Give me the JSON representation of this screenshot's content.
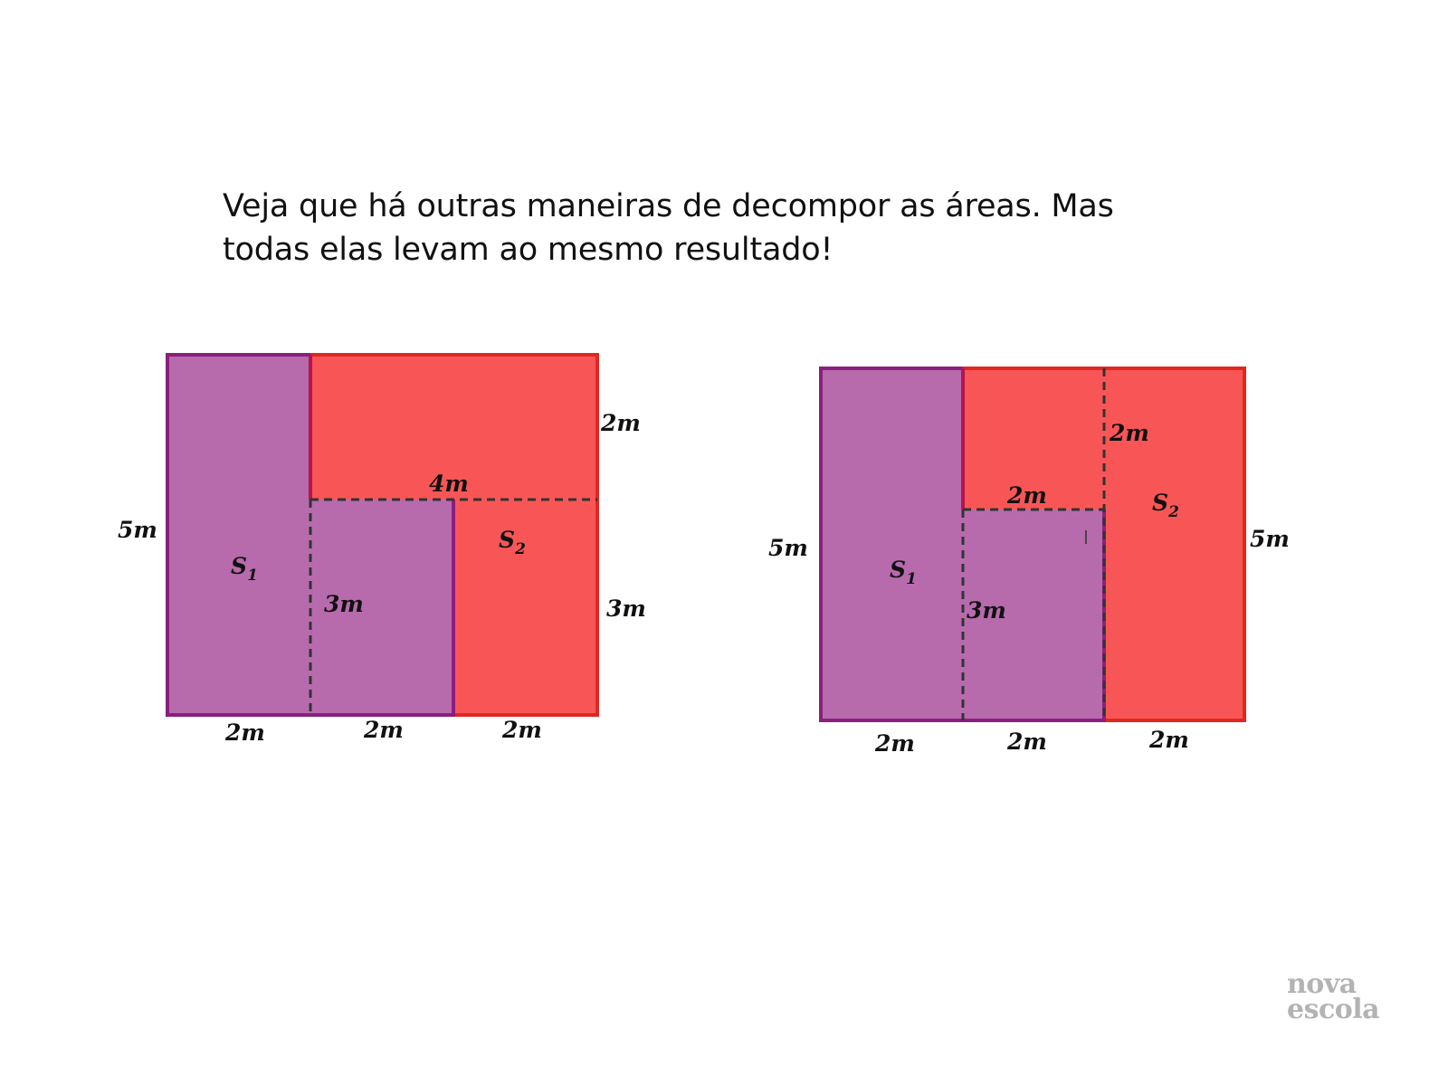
{
  "text": {
    "line1": "Veja que há outras maneiras de decompor as áreas. Mas",
    "line2": "todas elas levam ao mesmo resultado!"
  },
  "colors": {
    "purple_fill": "#b76bad",
    "purple_stroke": "#8a1f7e",
    "red_fill": "#f85656",
    "red_stroke": "#e0281f",
    "dash": "#333333",
    "logo": "#b3b3b3"
  },
  "diagrams": [
    {
      "labels": {
        "left_side": "5m",
        "top_right_side": "2m",
        "inner_top": "4m",
        "inner_side": "3m",
        "right_lower_side": "3m",
        "bottom_1": "2m",
        "bottom_2": "2m",
        "bottom_3": "2m",
        "region_1": "S",
        "region_1_sub": "1",
        "region_2": "S",
        "region_2_sub": "2"
      }
    },
    {
      "labels": {
        "left_side": "5m",
        "right_side": "5m",
        "upper_side": "2m",
        "inner_top": "2m",
        "inner_side": "3m",
        "bottom_1": "2m",
        "bottom_2": "2m",
        "bottom_3": "2m",
        "region_1": "S",
        "region_1_sub": "1",
        "region_2": "S",
        "region_2_sub": "2",
        "cursor_mark": "I"
      }
    }
  ],
  "logo": {
    "line1": "nova",
    "line2": "escola"
  }
}
